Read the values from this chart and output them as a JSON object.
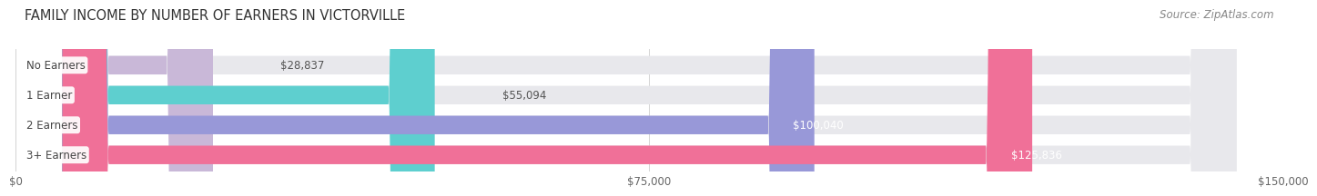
{
  "title": "FAMILY INCOME BY NUMBER OF EARNERS IN VICTORVILLE",
  "source": "Source: ZipAtlas.com",
  "categories": [
    "No Earners",
    "1 Earner",
    "2 Earners",
    "3+ Earners"
  ],
  "values": [
    28837,
    55094,
    100040,
    125836
  ],
  "labels": [
    "$28,837",
    "$55,094",
    "$100,040",
    "$125,836"
  ],
  "bar_colors": [
    "#c9b8d8",
    "#5ecfcf",
    "#9898d8",
    "#f07098"
  ],
  "bar_bg_color": "#e8e8ec",
  "background_color": "#ffffff",
  "xlim": [
    0,
    150000
  ],
  "xticks": [
    0,
    75000,
    150000
  ],
  "xticklabels": [
    "$0",
    "$75,000",
    "$150,000"
  ],
  "title_fontsize": 10.5,
  "source_fontsize": 8.5,
  "label_fontsize": 8.5,
  "cat_label_fontsize": 8.5,
  "bar_height": 0.62,
  "fig_width": 14.06,
  "fig_height": 2.33
}
